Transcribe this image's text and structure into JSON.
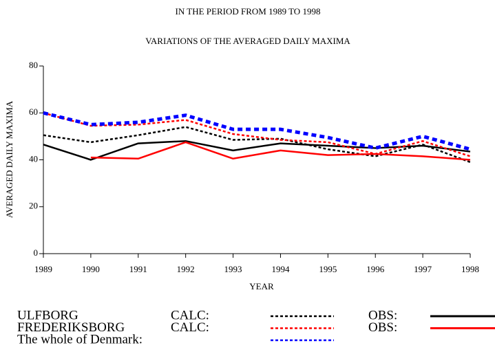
{
  "chart_data": {
    "type": "line",
    "subtitle": "IN THE PERIOD FROM 1989 TO 1998",
    "title": "VARIATIONS OF THE AVERAGED DAILY MAXIMA",
    "xlabel": "YEAR",
    "ylabel": "AVERAGED DAILY MAXIMA",
    "x": [
      1989,
      1990,
      1991,
      1992,
      1993,
      1994,
      1995,
      1996,
      1997,
      1998
    ],
    "xlim": [
      1989,
      1998
    ],
    "xticks": [
      1989,
      1990,
      1991,
      1992,
      1993,
      1994,
      1995,
      1996,
      1997,
      1998
    ],
    "ylim": [
      0,
      80
    ],
    "yticks": [
      0,
      20,
      40,
      60,
      80
    ],
    "series": [
      {
        "color": "#000000",
        "dash": "dashed",
        "width": 2.5,
        "values": [
          50.5,
          47.5,
          50.5,
          54,
          48.5,
          49,
          44.5,
          41.5,
          46.5,
          39
        ]
      },
      {
        "color": "#000000",
        "dash": "solid",
        "width": 2.5,
        "values": [
          46.5,
          40,
          47,
          48,
          44,
          47,
          46,
          45,
          46,
          43.5
        ]
      },
      {
        "color": "#ff0000",
        "dash": "dashed",
        "width": 2.5,
        "values": [
          60,
          54.5,
          55,
          57,
          51,
          48.5,
          47.5,
          42.5,
          48,
          41.5
        ]
      },
      {
        "color": "#ff0000",
        "dash": "solid",
        "width": 2.5,
        "values": [
          null,
          41,
          40.5,
          47.5,
          40.5,
          44,
          42,
          42.5,
          41.5,
          40
        ]
      },
      {
        "color": "#0000ff",
        "dash": "dashed",
        "width": 5,
        "values": [
          60,
          55,
          56,
          59,
          53,
          53,
          49.5,
          45,
          50,
          44.5
        ]
      }
    ],
    "legend": [
      {
        "label": "ULFBORG",
        "calc": "CALC:",
        "obs": "OBS:"
      },
      {
        "label": "FREDERIKSBORG",
        "calc": "CALC:",
        "obs": "OBS:"
      },
      {
        "label": "The whole of Denmark:"
      }
    ]
  }
}
